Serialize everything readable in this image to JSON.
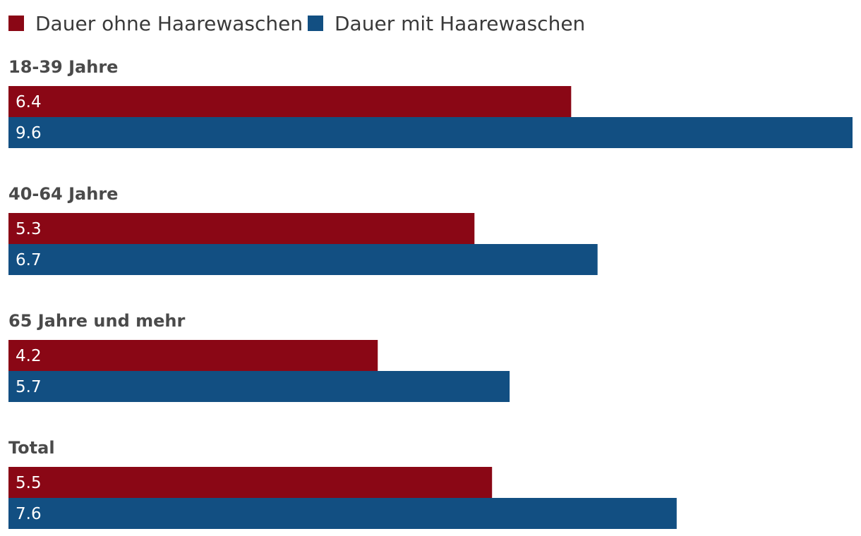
{
  "chart_data": {
    "type": "bar",
    "orientation": "horizontal",
    "categories": [
      "18-39 Jahre",
      "40-64 Jahre",
      "65 Jahre und mehr",
      "Total"
    ],
    "series": [
      {
        "name": "Dauer ohne Haarewaschen",
        "color": "#8a0715",
        "values": [
          6.4,
          5.3,
          4.2,
          5.5
        ],
        "labels": [
          "6.4",
          "5.3",
          "4.2",
          "5.5"
        ]
      },
      {
        "name": "Dauer mit Haarewaschen",
        "color": "#124f82",
        "values": [
          9.6,
          6.7,
          5.7,
          7.6
        ],
        "labels": [
          "9.6",
          "6.7",
          "5.7",
          "7.6"
        ]
      }
    ],
    "xlim": [
      0,
      9.6
    ],
    "grid": false,
    "legend_position": "top-left"
  }
}
